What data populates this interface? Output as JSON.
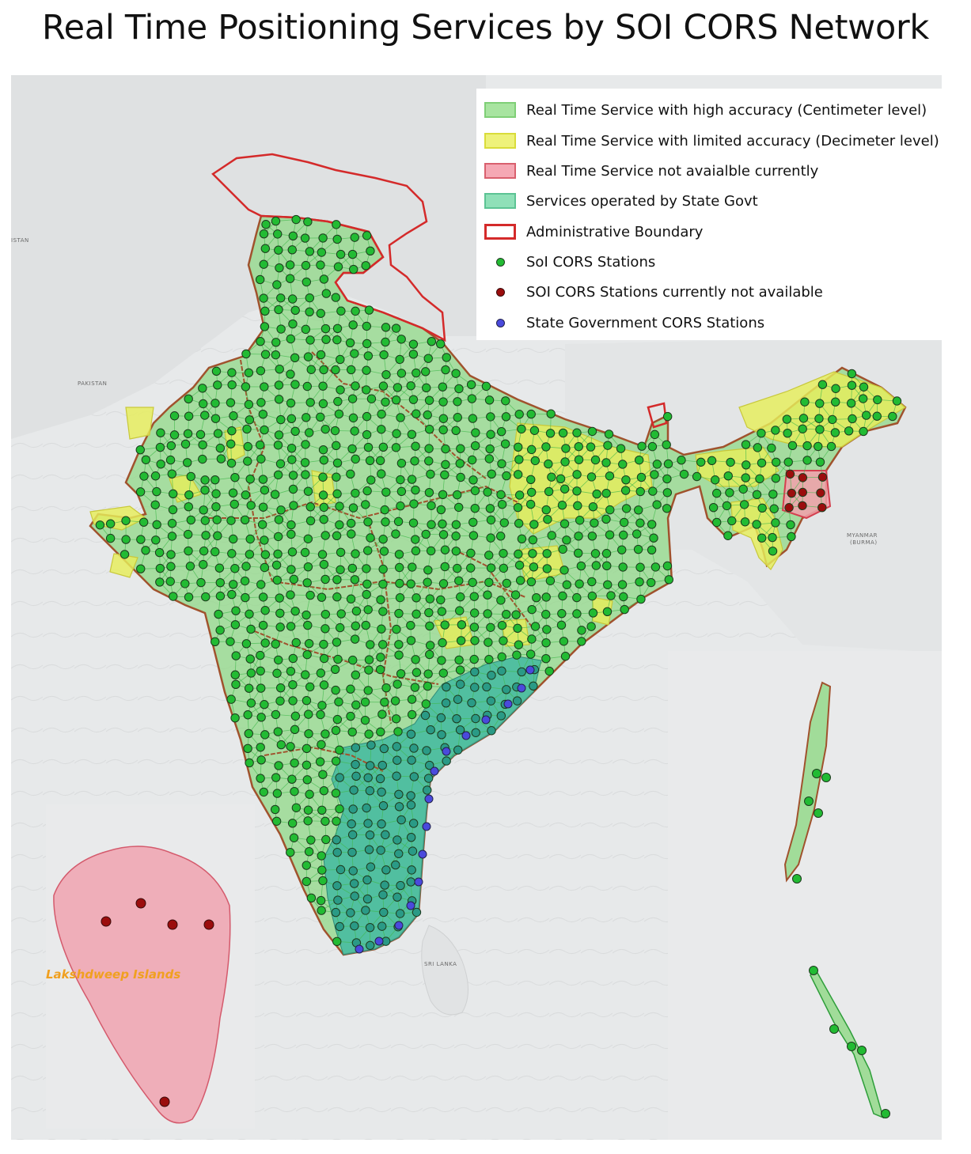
{
  "title": "Real Time Positioning Services by SOI CORS Network",
  "legend": {
    "items": [
      {
        "label": "Real Time Service with high accuracy (Centimeter level)",
        "kind": "fill",
        "fill": "#a8e4a0",
        "stroke": "#7fcf76"
      },
      {
        "label": "Real Time Service with limited accuracy (Decimeter level)",
        "kind": "fill",
        "fill": "#eef27a",
        "stroke": "#d9dc3a"
      },
      {
        "label": "Real Time Service not avaialble currently",
        "kind": "fill",
        "fill": "#f5a8b4",
        "stroke": "#d9606e"
      },
      {
        "label": "Services operated by State Govt",
        "kind": "fill",
        "fill": "#8fe0b8",
        "stroke": "#5cc394"
      },
      {
        "label": "Administrative Boundary",
        "kind": "outline",
        "fill": "#ffffff",
        "stroke": "#d42a2a"
      },
      {
        "label": "SoI CORS Stations",
        "kind": "dot",
        "fill": "#22bb33",
        "stroke": "#1f3a1f"
      },
      {
        "label": "SOI CORS Stations currently not available",
        "kind": "dot",
        "fill": "#9b0d0d",
        "stroke": "#3a0a0a"
      },
      {
        "label": "State Government CORS Stations",
        "kind": "dot",
        "fill": "#4a4adc",
        "stroke": "#22224a"
      }
    ]
  },
  "insets": {
    "lakshadweep_label": "Lakshdweep Islands"
  },
  "basemap_labels": {
    "pakistan": "PAKISTAN",
    "myanmar": "MYANMAR",
    "burma": "(BURMA)",
    "sri_lanka": "SRI LANKA",
    "istan": "ISTAN"
  },
  "colors": {
    "high_accuracy": "#8ed884",
    "limited_accuracy": "#e7ee5a",
    "not_available": "#f2a0ac",
    "state_govt": "#3cb8a0",
    "boundary": "#d42a2a",
    "state_lines": "#a0522d",
    "soi_station": "#22bb33",
    "unavailable_station": "#9b0d0d",
    "state_station": "#4a4adc"
  }
}
